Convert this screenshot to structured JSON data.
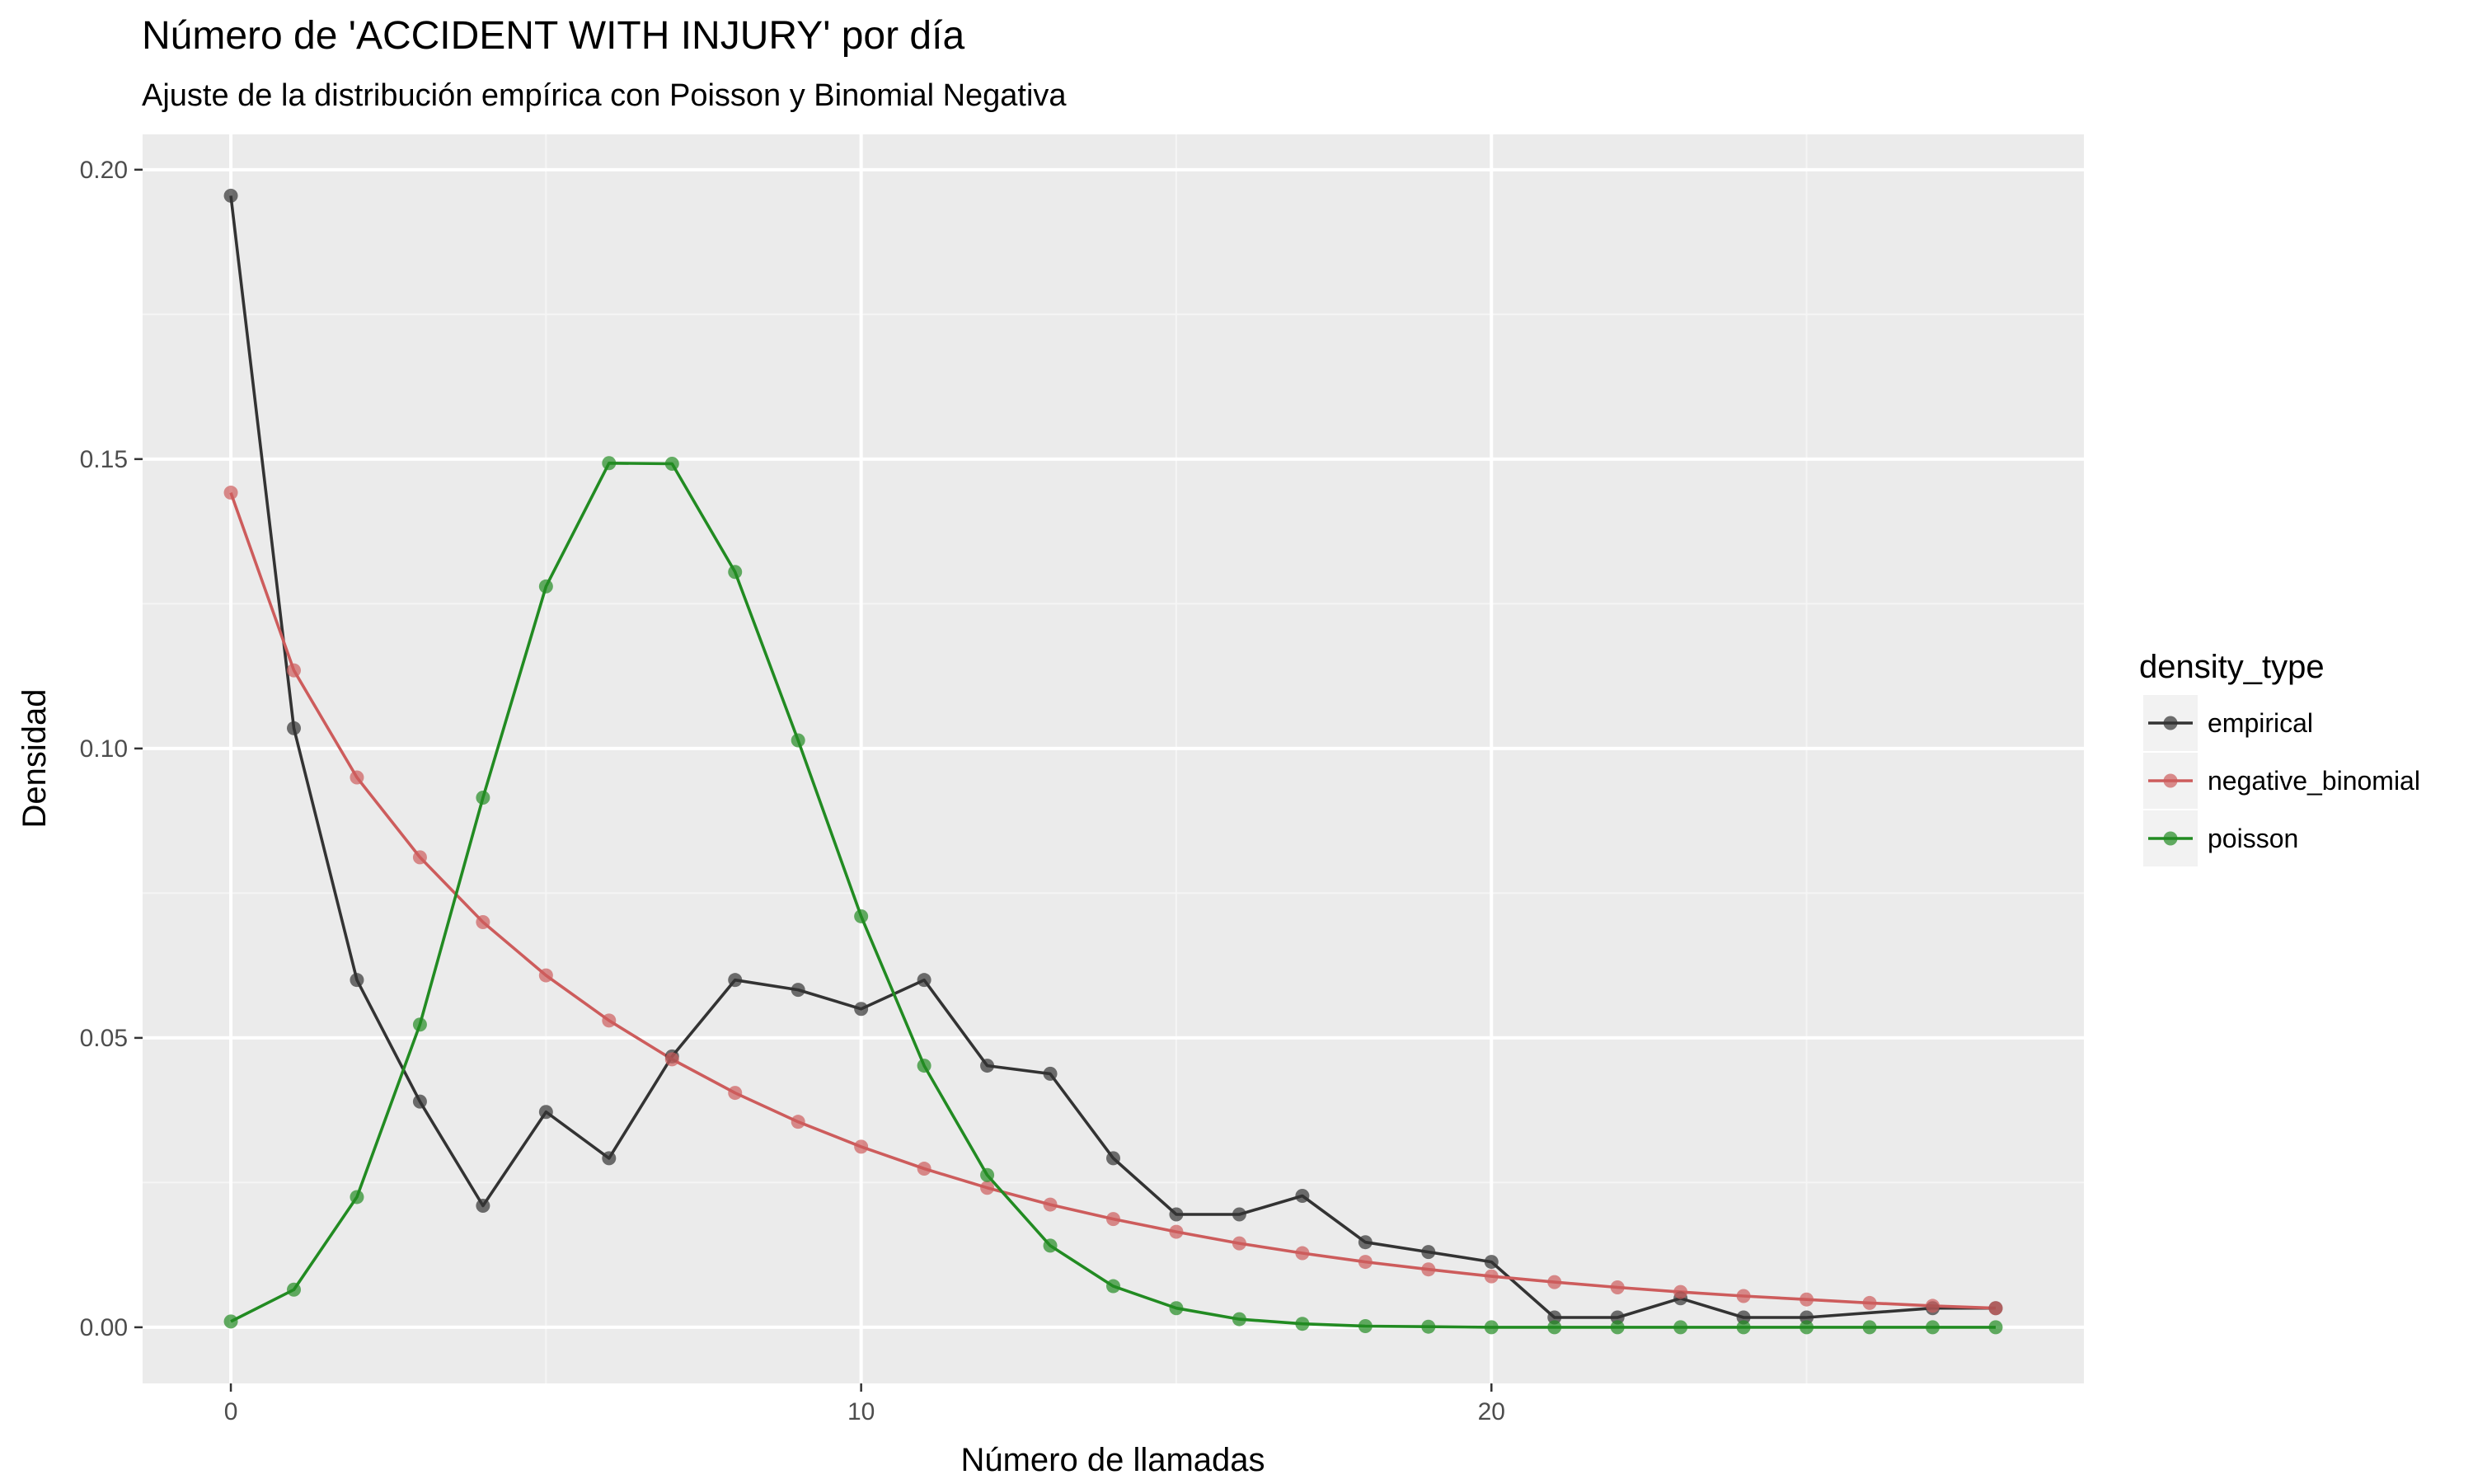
{
  "title": "Número de 'ACCIDENT WITH INJURY' por día",
  "subtitle": "Ajuste de la distribución empírica con Poisson y Binomial Negativa",
  "chart_data": {
    "type": "line",
    "title": "Número de 'ACCIDENT WITH INJURY' por día",
    "subtitle": "Ajuste de la distribución empírica con Poisson y Binomial Negativa",
    "xlabel": "Número de llamadas",
    "ylabel": "Densidad",
    "xlim": [
      -1.4,
      29.4
    ],
    "ylim": [
      -0.0097,
      0.2061
    ],
    "xticks": [
      0,
      10,
      20
    ],
    "xtick_labels": [
      "0",
      "10",
      "20"
    ],
    "yticks": [
      0.0,
      0.05,
      0.1,
      0.15,
      0.2
    ],
    "ytick_labels": [
      "0.00",
      "0.05",
      "0.10",
      "0.15",
      "0.20"
    ],
    "grid": true,
    "legend_title": "density_type",
    "legend_position": "right",
    "series": [
      {
        "name": "empirical",
        "color": "#333333",
        "x": [
          0,
          1,
          2,
          3,
          4,
          5,
          6,
          7,
          8,
          9,
          10,
          11,
          12,
          13,
          14,
          15,
          16,
          17,
          18,
          19,
          20,
          21,
          22,
          23,
          24,
          25,
          27,
          28
        ],
        "y": [
          0.1955,
          0.1035,
          0.06,
          0.039,
          0.021,
          0.0372,
          0.0292,
          0.0468,
          0.06,
          0.0583,
          0.055,
          0.06,
          0.0452,
          0.0438,
          0.0292,
          0.0195,
          0.0195,
          0.0227,
          0.0147,
          0.013,
          0.0113,
          0.0017,
          0.0017,
          0.005,
          0.0017,
          0.0017,
          0.0033,
          0.0033
        ]
      },
      {
        "name": "negative_binomial",
        "color": "#cd5c5c",
        "x": [
          0,
          1,
          2,
          3,
          4,
          5,
          6,
          7,
          8,
          9,
          10,
          11,
          12,
          13,
          14,
          15,
          16,
          17,
          18,
          19,
          20,
          21,
          22,
          23,
          24,
          25,
          26,
          27,
          28
        ],
        "y": [
          0.1442,
          0.1135,
          0.095,
          0.0812,
          0.07,
          0.0608,
          0.053,
          0.0463,
          0.0405,
          0.0355,
          0.0312,
          0.0274,
          0.0241,
          0.0212,
          0.0187,
          0.0165,
          0.0145,
          0.0128,
          0.0113,
          0.01,
          0.0088,
          0.0078,
          0.0069,
          0.0061,
          0.0054,
          0.0048,
          0.0042,
          0.0037,
          0.0033
        ]
      },
      {
        "name": "poisson",
        "color": "#228b22",
        "x": [
          0,
          1,
          2,
          3,
          4,
          5,
          6,
          7,
          8,
          9,
          10,
          11,
          12,
          13,
          14,
          15,
          16,
          17,
          18,
          19,
          20,
          21,
          22,
          23,
          24,
          25,
          26,
          27,
          28
        ],
        "y": [
          0.001,
          0.0065,
          0.0225,
          0.0523,
          0.0915,
          0.128,
          0.1493,
          0.1492,
          0.1305,
          0.1014,
          0.071,
          0.0452,
          0.0263,
          0.0141,
          0.0071,
          0.0033,
          0.0014,
          0.0006,
          0.0002,
          0.0001,
          0.0,
          0.0,
          0.0,
          0.0,
          0.0,
          0.0,
          0.0,
          0.0,
          0.0
        ]
      }
    ]
  }
}
